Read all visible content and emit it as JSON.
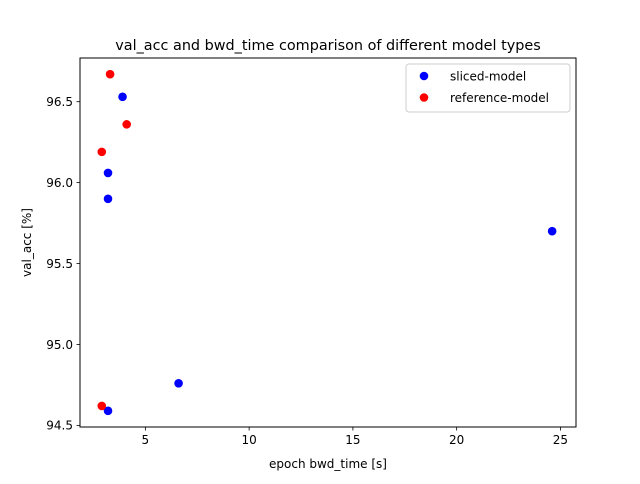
{
  "chart_data": {
    "type": "scatter",
    "title": "val_acc and bwd_time comparison of different model types",
    "xlabel": "epoch bwd_time [s]",
    "ylabel": "val_acc [%]",
    "xlim": [
      1.85,
      25.75
    ],
    "ylim": [
      94.49,
      96.77
    ],
    "xticks": [
      5,
      10,
      15,
      20,
      25
    ],
    "xtick_labels": [
      "5",
      "10",
      "15",
      "20",
      "25"
    ],
    "yticks": [
      94.5,
      95.0,
      95.5,
      96.0,
      96.5
    ],
    "ytick_labels": [
      "94.5",
      "95.0",
      "95.5",
      "96.0",
      "96.5"
    ],
    "grid": false,
    "legend_position": "top-right",
    "series": [
      {
        "name": "sliced-model",
        "color": "#0000ff",
        "points": [
          {
            "x": 3.9,
            "y": 96.53
          },
          {
            "x": 3.2,
            "y": 96.06
          },
          {
            "x": 3.2,
            "y": 95.9
          },
          {
            "x": 24.6,
            "y": 95.7
          },
          {
            "x": 6.6,
            "y": 94.76
          },
          {
            "x": 3.2,
            "y": 94.59
          }
        ]
      },
      {
        "name": "reference-model",
        "color": "#ff0000",
        "points": [
          {
            "x": 3.3,
            "y": 96.67
          },
          {
            "x": 4.1,
            "y": 96.36
          },
          {
            "x": 2.9,
            "y": 96.19
          },
          {
            "x": 2.9,
            "y": 94.62
          }
        ]
      }
    ]
  }
}
